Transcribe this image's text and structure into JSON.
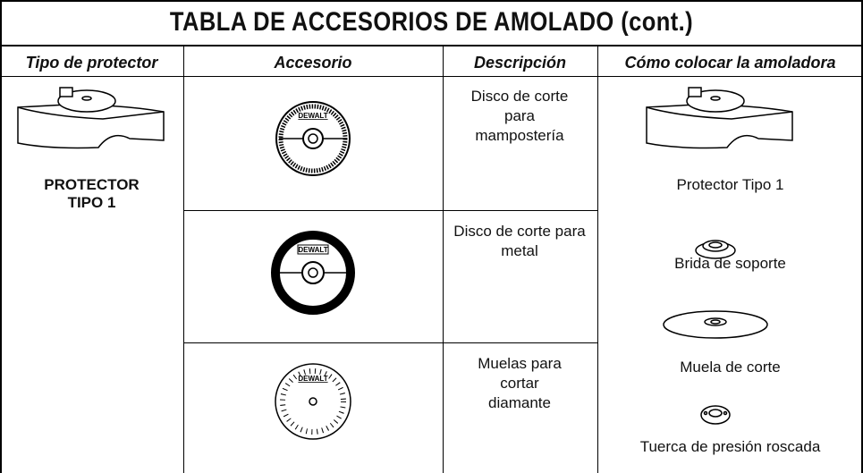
{
  "header": {
    "title": "TABLA DE ACCESORIOS DE AMOLADO (cont.)"
  },
  "table": {
    "columns": [
      "Tipo de protector",
      "Accesorio",
      "Descripción",
      "Cómo colocar la amoladora"
    ],
    "guard_type": "PROTECTOR TIPO 1",
    "brand": "DEWALT",
    "descriptions": [
      "Disco de corte para mampostería",
      "Disco de corte para metal",
      "Muelas para cortar diamante"
    ],
    "assembly": [
      "Protector Tipo 1",
      "Brida de soporte",
      "Muela de corte",
      "Tuerca de presión roscada"
    ]
  }
}
